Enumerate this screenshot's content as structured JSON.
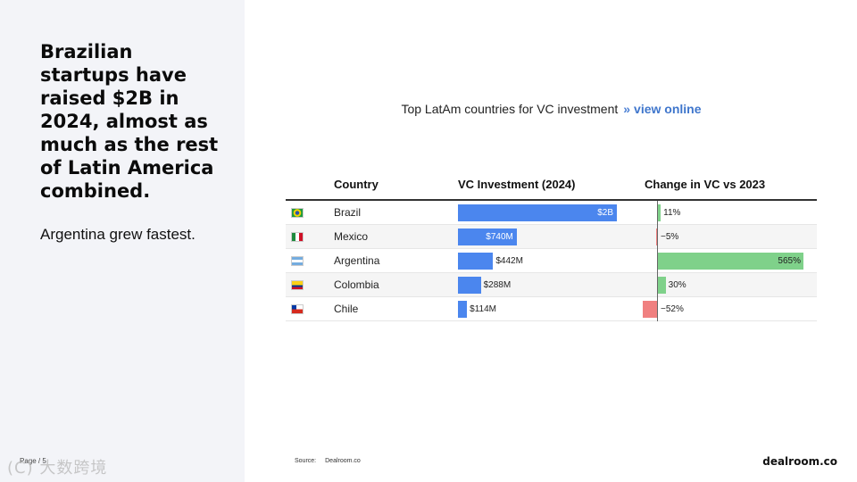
{
  "slide": {
    "headline": "Brazilian startups have raised $2B in 2024, almost as much as the rest of Latin America combined.",
    "subhead": "Argentina grew fastest.",
    "page_label": "Page / 5",
    "source_label": "Source:",
    "source_value": "Dealroom.co",
    "brand": "dealroom.co",
    "watermark": "(C) 大数跨境"
  },
  "chart_data": {
    "type": "table",
    "title": "Top LatAm countries for VC investment",
    "title_sep": "»",
    "link_text": "view online",
    "columns": [
      "Country",
      "VC Investment (2024)",
      "Change in VC vs 2023"
    ],
    "rows": [
      {
        "country": "Brazil",
        "flag": "brazil-flag",
        "investment_m": 2000,
        "investment_label": "$2B",
        "change_pct": 11,
        "change_label": "11%"
      },
      {
        "country": "Mexico",
        "flag": "mexico-flag",
        "investment_m": 740,
        "investment_label": "$740M",
        "change_pct": -5,
        "change_label": "−5%"
      },
      {
        "country": "Argentina",
        "flag": "argentina-flag",
        "investment_m": 442,
        "investment_label": "$442M",
        "change_pct": 565,
        "change_label": "565%"
      },
      {
        "country": "Colombia",
        "flag": "colombia-flag",
        "investment_m": 288,
        "investment_label": "$288M",
        "change_pct": 30,
        "change_label": "30%"
      },
      {
        "country": "Chile",
        "flag": "chile-flag",
        "investment_m": 114,
        "investment_label": "$114M",
        "change_pct": -52,
        "change_label": "−52%"
      }
    ],
    "colors": {
      "investment_bar": "#4b86ee",
      "positive_change": "#7fd18a",
      "negative_change": "#f08080"
    }
  }
}
